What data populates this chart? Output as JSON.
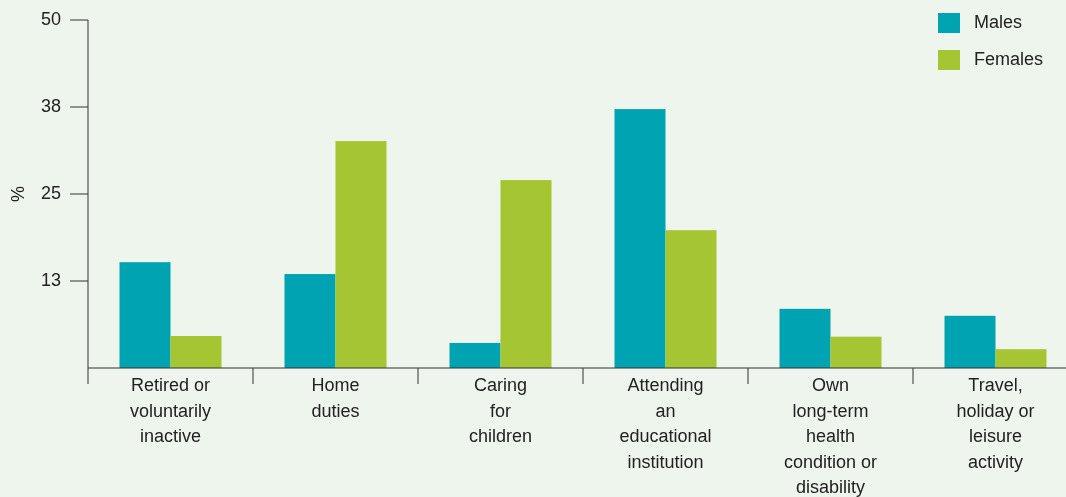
{
  "chart_data": {
    "type": "bar",
    "ylabel": "%",
    "categories": [
      "Retired or\nvoluntarily\ninactive",
      "Home\nduties",
      "Caring\nfor\nchildren",
      "Attending\nan\neducational\ninstitution",
      "Own\nlong-term\nhealth\ncondition or\ndisability",
      "Travel,\nholiday or\nleisure\nactivity"
    ],
    "series": [
      {
        "name": "Males",
        "color": "#00a3b1",
        "values": [
          15.2,
          13.5,
          3.6,
          37.2,
          8.5,
          7.5
        ]
      },
      {
        "name": "Females",
        "color": "#a6c533",
        "values": [
          4.6,
          32.6,
          27.0,
          19.8,
          4.5,
          2.7
        ]
      }
    ],
    "ylim": [
      0,
      50
    ],
    "yticks": [
      {
        "value": 12.5,
        "label": "13"
      },
      {
        "value": 25,
        "label": "25"
      },
      {
        "value": 37.5,
        "label": "38"
      },
      {
        "value": 50,
        "label": "50"
      }
    ],
    "legend": "top right"
  }
}
